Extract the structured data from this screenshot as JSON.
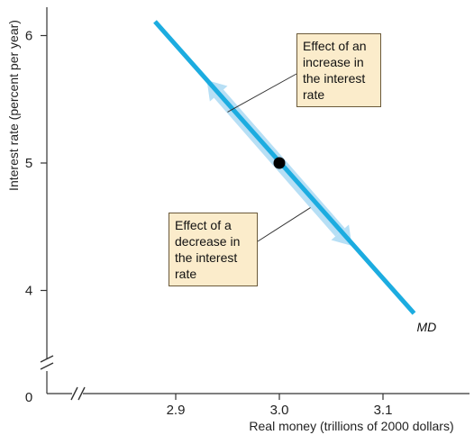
{
  "chart_data": {
    "type": "line",
    "xlabel": "Real money (trillions of 2000 dollars)",
    "ylabel": "Interest rate (percent per year)",
    "x_ticks": [
      "2.9",
      "3.0",
      "3.1"
    ],
    "y_ticks": [
      "6",
      "5",
      "4"
    ],
    "origin_label": "0",
    "xlim": [
      2.82,
      3.17
    ],
    "ylim": [
      3.4,
      6.2
    ],
    "axis_breaks": [
      "x",
      "y"
    ],
    "grid": false,
    "series": [
      {
        "name": "MD",
        "x": [
          2.88,
          3.13
        ],
        "y": [
          6.11,
          3.82
        ],
        "color": "#1cace0"
      }
    ],
    "point": {
      "x": 3.0,
      "y": 5.0,
      "color": "#000000"
    },
    "movement_arrows": [
      {
        "from_x": 3.0,
        "from_y": 5.0,
        "to_x": 2.93,
        "to_y": 5.65,
        "color": "#b7dff5"
      },
      {
        "from_x": 3.0,
        "from_y": 5.0,
        "to_x": 3.07,
        "to_y": 4.35,
        "color": "#b7dff5"
      }
    ],
    "annotations": [
      {
        "id": "increase",
        "lines": [
          "Effect of an",
          "increase in",
          "the interest",
          "rate"
        ],
        "target_x": 2.95,
        "target_y": 5.4
      },
      {
        "id": "decrease",
        "lines": [
          "Effect of a",
          "decrease in",
          "the interest",
          "rate"
        ],
        "target_x": 3.03,
        "target_y": 4.65
      }
    ],
    "colors": {
      "box_fill": "#fbeccb",
      "box_border": "#6b5a3a",
      "axis": "#333333"
    }
  }
}
